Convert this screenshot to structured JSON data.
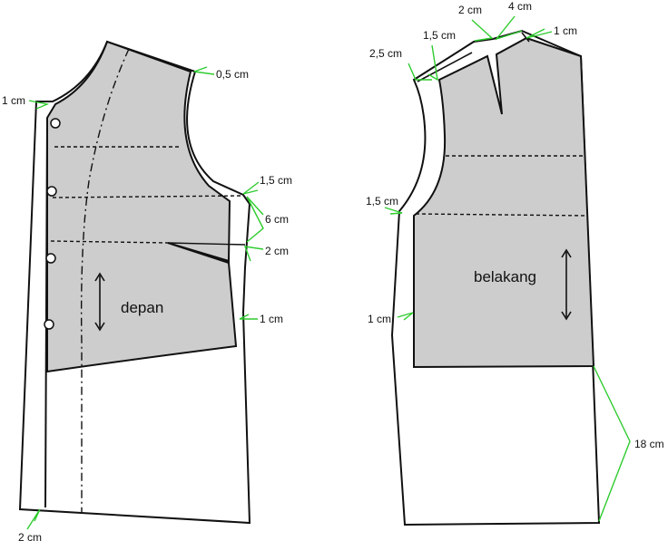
{
  "colors": {
    "outline": "#111111",
    "fill": "#cdcdcd",
    "leader": "#2ecc2e",
    "background": "#ffffff"
  },
  "front": {
    "title": "depan",
    "labels": {
      "center_front": "1 cm",
      "shoulder": "0,5 cm",
      "armhole": "1,5 cm",
      "side_upper": "6 cm",
      "dart": "2 cm",
      "side_lower": "1 cm",
      "hem": "2 cm"
    }
  },
  "back": {
    "title": "belakang",
    "labels": {
      "neck_dart_width": "2 cm",
      "neck_dart_length": "4 cm",
      "neck_right": "1 cm",
      "neck_left": "1,5 cm",
      "shoulder_left": "2,5 cm",
      "armhole": "1,5 cm",
      "side": "1 cm",
      "side_length": "18 cm"
    }
  }
}
